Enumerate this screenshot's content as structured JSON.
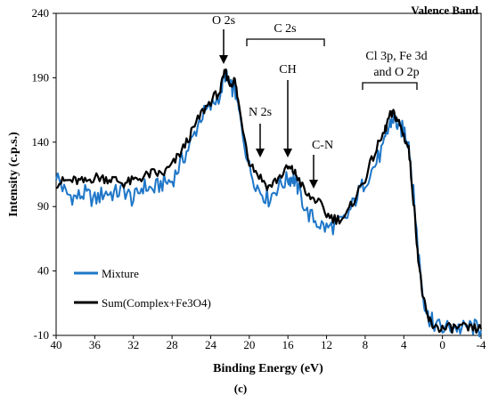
{
  "chart_data": {
    "type": "line",
    "panel_label": "Valence Band",
    "xlabel": "Binding Energy (eV)",
    "ylabel": "Intensity (c.p.s.)",
    "caption": "(c)",
    "xlim": [
      40,
      -4
    ],
    "ylim": [
      -10,
      240
    ],
    "x_ticks": [
      "40",
      "36",
      "32",
      "28",
      "24",
      "20",
      "16",
      "12",
      "8",
      "4",
      "0",
      "-4"
    ],
    "y_ticks": [
      "-10",
      "40",
      "90",
      "140",
      "190",
      "240"
    ],
    "legend_position": "bottom-left",
    "annotations": {
      "o2s": "O 2s",
      "c2s": "C 2s",
      "ch": "CH",
      "n2s": "N 2s",
      "cn": "C-N",
      "cl_line1": "Cl 3p, Fe 3d",
      "cl_line2": "and O 2p"
    },
    "series": [
      {
        "name": "Mixture",
        "color": "#1f77c8",
        "x": [
          40,
          39,
          38,
          37,
          36,
          35,
          34,
          33,
          32,
          31,
          30,
          29,
          28,
          27,
          26,
          25,
          24,
          23,
          22.5,
          22,
          21.5,
          21,
          20,
          19,
          18,
          17,
          16,
          15.5,
          15,
          14,
          13,
          12,
          11,
          10,
          9,
          8,
          7,
          6,
          5.5,
          5,
          4.5,
          4,
          3.5,
          3,
          2.5,
          2,
          1.5,
          1,
          0,
          -1,
          -2,
          -3,
          -4
        ],
        "values": [
          115,
          100,
          97,
          100,
          95,
          101,
          100,
          103,
          95,
          106,
          103,
          108,
          110,
          125,
          140,
          160,
          167,
          178,
          193,
          182,
          182,
          160,
          120,
          103,
          96,
          106,
          111,
          113,
          105,
          85,
          78,
          73,
          76,
          80,
          96,
          110,
          122,
          138,
          153,
          160,
          150,
          150,
          140,
          100,
          55,
          20,
          5,
          0,
          -5,
          -3,
          -5,
          -3,
          -6
        ]
      },
      {
        "name": "Sum(Complex+Fe3O4)",
        "color": "#000000",
        "x": [
          40,
          39,
          38,
          37,
          36,
          35,
          34,
          33,
          32,
          31,
          30,
          29,
          28,
          27,
          26,
          25,
          24,
          23,
          22.5,
          22,
          21.5,
          21,
          20,
          19,
          18,
          17,
          16,
          15.5,
          15,
          14,
          13,
          12,
          11,
          10,
          9,
          8,
          7,
          6,
          5.5,
          5,
          4.5,
          4,
          3.5,
          3,
          2.5,
          2,
          1.5,
          1,
          0,
          -1,
          -2,
          -3,
          -4
        ],
        "values": [
          108,
          110,
          110,
          109,
          113,
          112,
          111,
          108,
          110,
          113,
          116,
          115,
          122,
          133,
          147,
          162,
          172,
          180,
          195,
          185,
          188,
          165,
          125,
          114,
          105,
          112,
          120,
          118,
          113,
          98,
          95,
          84,
          80,
          82,
          98,
          112,
          132,
          148,
          160,
          162,
          155,
          145,
          135,
          95,
          50,
          18,
          3,
          -2,
          -5,
          -4,
          -4,
          -5,
          -5
        ]
      }
    ]
  }
}
